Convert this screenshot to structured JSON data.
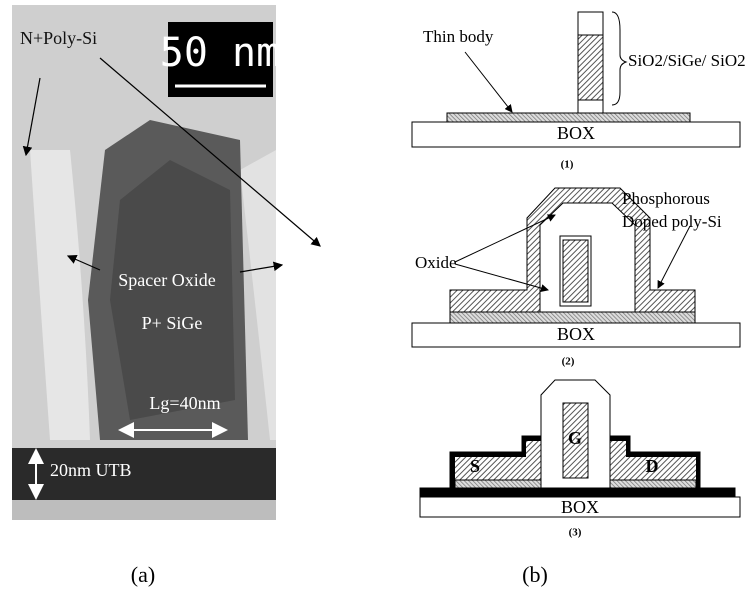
{
  "panel_a": {
    "scale_bar": "50 nm",
    "gate_label": "N+Poly-Si",
    "spacer_label": "Spacer Oxide",
    "sige_label": "P+ SiGe",
    "gate_length": "Lg=40nm",
    "utb_label": "20nm UTB",
    "caption": "(a)"
  },
  "panel_b": {
    "step1": {
      "body_label": "Thin body",
      "stack_label": "SiO2/SiGe/ SiO2",
      "box": "BOX",
      "caption": "(1)"
    },
    "step2": {
      "poly_label_1": "Phosphorous",
      "poly_label_2": "Doped poly-Si",
      "oxide_label": "Oxide",
      "box": "BOX",
      "caption": "(2)"
    },
    "step3": {
      "gate": "G",
      "source": "S",
      "drain": "D",
      "box": "BOX",
      "caption": "(3)"
    },
    "caption": "(b)"
  }
}
